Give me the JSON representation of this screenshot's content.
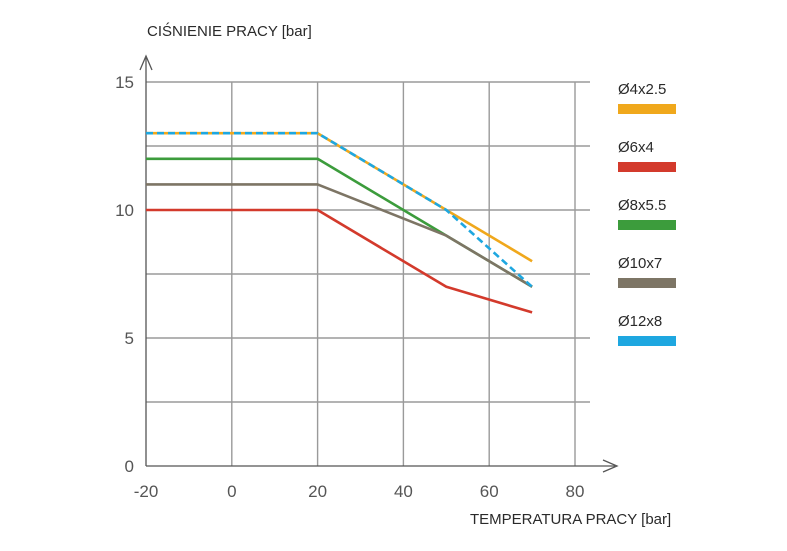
{
  "chart_data": {
    "type": "line",
    "xlabel": "TEMPERATURA PRACY [bar]",
    "ylabel": "CIŚNIENIE PRACY [bar]",
    "xlim": [
      -20,
      80
    ],
    "ylim": [
      0,
      15
    ],
    "x_ticks": [
      "-20",
      "0",
      "20",
      "40",
      "60",
      "80"
    ],
    "y_ticks": [
      "0",
      "5",
      "10",
      "15"
    ],
    "grid": true,
    "legend_position": "right",
    "series": [
      {
        "name": "Ø4x2.5",
        "color": "#f0a81c",
        "dashed": false,
        "points": [
          [
            -20,
            13
          ],
          [
            20,
            13
          ],
          [
            50,
            10
          ],
          [
            70,
            8
          ]
        ]
      },
      {
        "name": "Ø6x4",
        "color": "#d33a2c",
        "dashed": false,
        "points": [
          [
            -20,
            10
          ],
          [
            20,
            10
          ],
          [
            50,
            7
          ],
          [
            70,
            6
          ]
        ]
      },
      {
        "name": "Ø8x5.5",
        "color": "#3c9c3c",
        "dashed": false,
        "points": [
          [
            -20,
            12
          ],
          [
            20,
            12
          ],
          [
            50,
            9
          ],
          [
            70,
            7
          ]
        ]
      },
      {
        "name": "Ø10x7",
        "color": "#7d7565",
        "dashed": false,
        "points": [
          [
            -20,
            11
          ],
          [
            20,
            11
          ],
          [
            50,
            9
          ],
          [
            70,
            7
          ]
        ]
      },
      {
        "name": "Ø12x8",
        "color": "#1ea7e0",
        "dashed": true,
        "points": [
          [
            -20,
            13
          ],
          [
            20,
            13
          ],
          [
            50,
            10
          ],
          [
            70,
            7
          ]
        ]
      }
    ]
  }
}
